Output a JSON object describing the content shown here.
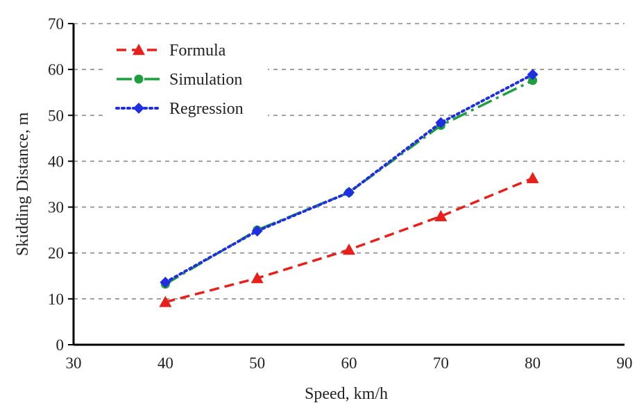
{
  "chart_data": {
    "type": "line",
    "xlabel": "Speed, km/h",
    "ylabel": "Skidding Distance, m",
    "xlim": [
      30,
      90
    ],
    "ylim": [
      0,
      70
    ],
    "xticks": [
      "30",
      "40",
      "50",
      "60",
      "70",
      "80",
      "90"
    ],
    "yticks": [
      "0",
      "10",
      "20",
      "30",
      "40",
      "50",
      "60",
      "70"
    ],
    "grid": "horizontal dashed",
    "legend_position": "top-left",
    "x": [
      40,
      50,
      60,
      70,
      80
    ],
    "series": [
      {
        "name": "Formula",
        "values": [
          9.3,
          14.5,
          20.7,
          28.0,
          36.3
        ],
        "color": "#e8201c",
        "marker": "triangle",
        "dash": "dashed"
      },
      {
        "name": "Simulation",
        "values": [
          13.2,
          25.0,
          33.2,
          47.8,
          57.6
        ],
        "color": "#1e9e3c",
        "marker": "circle",
        "dash": "dash-dot"
      },
      {
        "name": "Regression",
        "values": [
          13.6,
          24.8,
          33.2,
          48.4,
          58.9
        ],
        "color": "#1f2ee0",
        "marker": "diamond",
        "dash": "dotted"
      }
    ]
  }
}
